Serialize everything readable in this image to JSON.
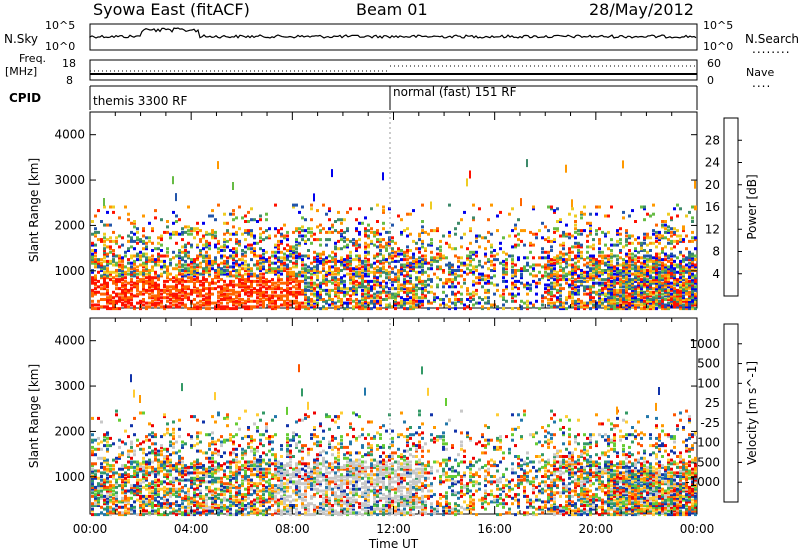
{
  "header": {
    "title": "Syowa East (fitACF)",
    "beam": "Beam 01",
    "date": "28/May/2012"
  },
  "noise_panel": {
    "left_label": "N.Sky",
    "right_label": "N.Search",
    "left_ticks": [
      "10^5",
      "10^0"
    ],
    "right_ticks": [
      "10^5",
      "10^0"
    ],
    "right_line_style": "dotted"
  },
  "freq_panel": {
    "left_label": "Freq.",
    "left_unit": "[MHz]",
    "left_ticks": [
      "18",
      "8"
    ],
    "right_label": "Nave",
    "right_ticks": [
      "60",
      "0"
    ],
    "right_line_style": "dotted"
  },
  "cpid_panel": {
    "label": "CPID",
    "modes": [
      {
        "name": "themis 3300 RF",
        "start_hour": 0
      },
      {
        "name": "normal (fast) 151 RF",
        "start_hour": 12
      }
    ]
  },
  "chart_data": [
    {
      "type": "heatmap",
      "title": "",
      "ylabel": "Slant Range [km]",
      "xlabel": "",
      "xlim": [
        "00:00",
        "24:00"
      ],
      "ylim": [
        180,
        4500
      ],
      "yticks": [
        "1000",
        "2000",
        "3000",
        "4000"
      ],
      "colorbar": {
        "label": "Power [dB]",
        "ticks": [
          "4",
          "8",
          "12",
          "16",
          "20",
          "24",
          "28"
        ],
        "range": [
          0,
          32
        ],
        "colors": [
          "#0000ee",
          "#2255aa",
          "#3d8a6a",
          "#66bb44",
          "#eecc22",
          "#ff9900",
          "#ff6600",
          "#ff1100"
        ]
      }
    },
    {
      "type": "heatmap",
      "title": "",
      "ylabel": "Slant Range [km]",
      "xlabel": "Time UT",
      "xlim": [
        "00:00",
        "24:00"
      ],
      "ylim": [
        180,
        4500
      ],
      "yticks": [
        "1000",
        "2000",
        "3000",
        "4000"
      ],
      "xticks": [
        "00:00",
        "04:00",
        "08:00",
        "12:00",
        "16:00",
        "20:00",
        "00:00"
      ],
      "colorbar": {
        "label": "Velocity [m s^-1]",
        "ticks": [
          "1000",
          "500",
          "100",
          "25",
          "-25",
          "-100",
          "-500",
          "-1000"
        ],
        "range": [
          -1200,
          1200
        ],
        "colors": [
          "#1133aa",
          "#2277aa",
          "#339966",
          "#66cc33",
          "#c8c8c8",
          "#ffcc33",
          "#ff9900",
          "#ff5500",
          "#ee0000"
        ]
      }
    }
  ]
}
